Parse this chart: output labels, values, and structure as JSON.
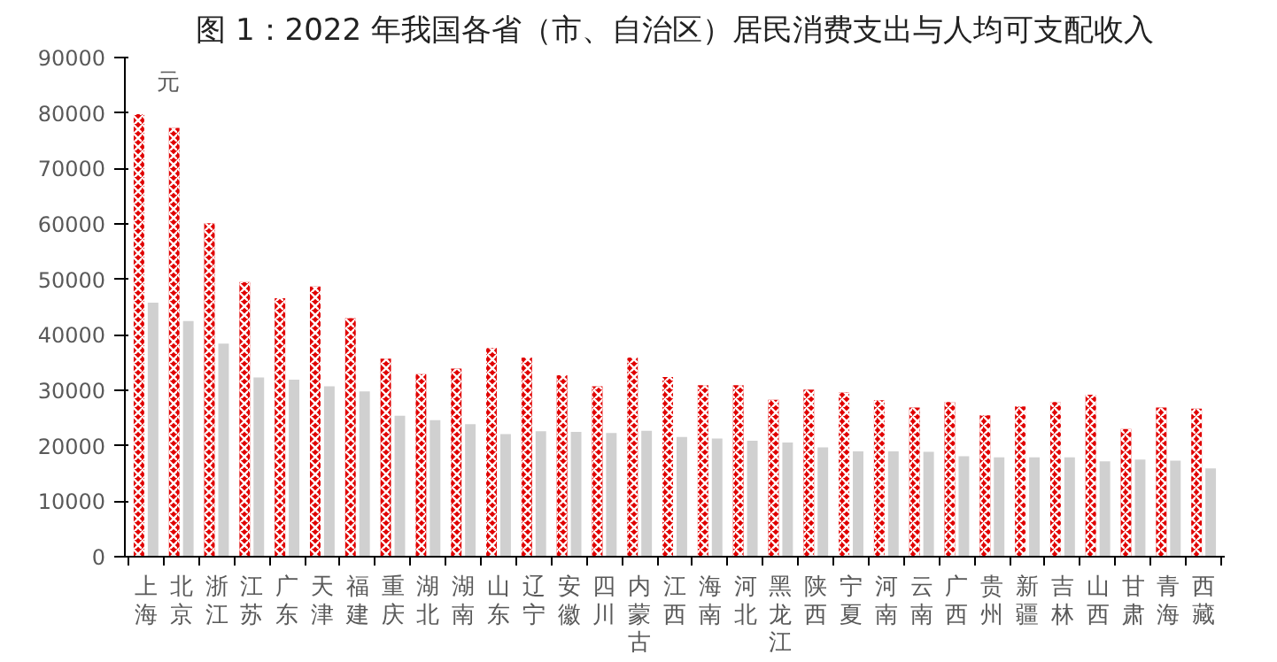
{
  "chart_data": {
    "type": "bar",
    "title": "图 1：2022 年我国各省（市、自治区）居民消费支出与人均可支配收入",
    "categories": [
      "上海",
      "北京",
      "浙江",
      "江苏",
      "广东",
      "天津",
      "福建",
      "重庆",
      "湖北",
      "湖南",
      "山东",
      "辽宁",
      "安徽",
      "四川",
      "内蒙古",
      "江西",
      "海南",
      "河北",
      "黑龙江",
      "陕西",
      "宁夏",
      "河南",
      "云南",
      "广西",
      "贵州",
      "新疆",
      "吉林",
      "山西",
      "甘肃",
      "青海",
      "西藏"
    ],
    "series": [
      {
        "color": "#e00000",
        "values": [
          79800,
          77300,
          60100,
          49500,
          46600,
          48700,
          43000,
          35700,
          32900,
          33900,
          37600,
          35900,
          32700,
          30700,
          35900,
          32400,
          30900,
          30900,
          28300,
          30100,
          29600,
          28200,
          26900,
          27900,
          25500,
          27100,
          27900,
          29200,
          23000,
          26900,
          26700
        ]
      },
      {
        "color": "#d0d0d0",
        "values": [
          45800,
          42500,
          38400,
          32300,
          31900,
          30700,
          29800,
          25400,
          24600,
          23900,
          22100,
          22600,
          22500,
          22300,
          22700,
          21600,
          21300,
          20900,
          20600,
          19700,
          19000,
          19000,
          18900,
          18100,
          17900,
          17900,
          17900,
          17200,
          17500,
          17300,
          15900
        ]
      }
    ],
    "ylim": [
      0,
      90000
    ],
    "yticks": [
      0,
      10000,
      20000,
      30000,
      40000,
      50000,
      60000,
      70000,
      80000,
      90000
    ],
    "annotations": [
      "元"
    ],
    "grid": false
  }
}
